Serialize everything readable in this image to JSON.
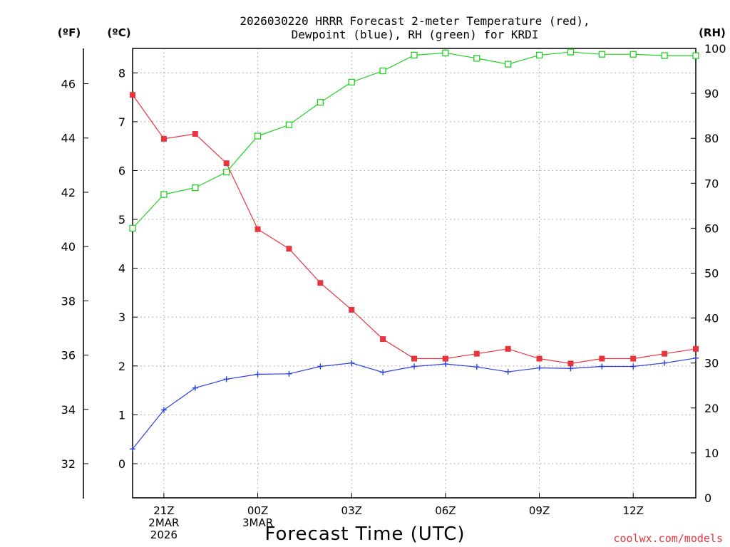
{
  "title_line1": "2026030220 HRRR Forecast 2-meter Temperature (red),",
  "title_line2": "Dewpoint (blue), RH (green) for KRDI",
  "unit_f": "(ºF)",
  "unit_c": "(ºC)",
  "unit_rh": "(RH)",
  "xlabel": "Forecast Time (UTC)",
  "credit": "coolwx.com/models",
  "chart_data": {
    "type": "line",
    "title": "2026030220 HRRR Forecast 2-meter Temperature (red), Dewpoint (blue), RH (green) for KRDI",
    "xlabel": "Forecast Time (UTC)",
    "x_hours": [
      20,
      21,
      22,
      23,
      24,
      25,
      26,
      27,
      28,
      29,
      30,
      31,
      32,
      33,
      34,
      35,
      36,
      37,
      38
    ],
    "xlim": [
      20,
      38
    ],
    "x_ticks": [
      {
        "hour": 21,
        "lines": [
          "21Z",
          "2MAR",
          "2026"
        ]
      },
      {
        "hour": 24,
        "lines": [
          "00Z",
          "3MAR"
        ]
      },
      {
        "hour": 27,
        "lines": [
          "03Z"
        ]
      },
      {
        "hour": 30,
        "lines": [
          "06Z"
        ]
      },
      {
        "hour": 33,
        "lines": [
          "09Z"
        ]
      },
      {
        "hour": 36,
        "lines": [
          "12Z"
        ]
      }
    ],
    "y_left_c": {
      "label": "(ºC)",
      "lim": [
        -0.7,
        8.5
      ],
      "ticks": [
        0,
        1,
        2,
        3,
        4,
        5,
        6,
        7,
        8
      ]
    },
    "y_left_f": {
      "label": "(ºF)",
      "ticks": [
        32,
        34,
        36,
        38,
        40,
        42,
        44,
        46
      ]
    },
    "y_right_rh": {
      "label": "(RH)",
      "lim": [
        0,
        100
      ],
      "ticks": [
        0,
        10,
        20,
        30,
        40,
        50,
        60,
        70,
        80,
        90,
        100
      ]
    },
    "grid": true,
    "series": [
      {
        "color": "#e8343c",
        "marker": "filled-square",
        "axis": "c",
        "values": [
          7.55,
          6.65,
          6.75,
          6.15,
          4.8,
          4.4,
          3.7,
          3.15,
          2.55,
          2.15,
          2.15,
          2.25,
          2.35,
          2.15,
          2.05,
          2.15,
          2.15,
          2.25,
          2.35
        ]
      },
      {
        "color": "#2b3fe0",
        "marker": "plus",
        "axis": "c",
        "values": [
          0.3,
          1.1,
          1.55,
          1.73,
          1.83,
          1.84,
          1.99,
          2.06,
          1.87,
          1.99,
          2.04,
          1.98,
          1.88,
          1.96,
          1.95,
          1.99,
          1.99,
          2.06,
          2.16
        ]
      },
      {
        "color": "#22d122",
        "marker": "open-square",
        "axis": "rh",
        "values": [
          60,
          67.5,
          69,
          72.5,
          80.5,
          83,
          88,
          92.5,
          95,
          98.5,
          99,
          97.8,
          96.5,
          98.5,
          99.2,
          98.7,
          98.7,
          98.4,
          98.4
        ]
      }
    ]
  }
}
